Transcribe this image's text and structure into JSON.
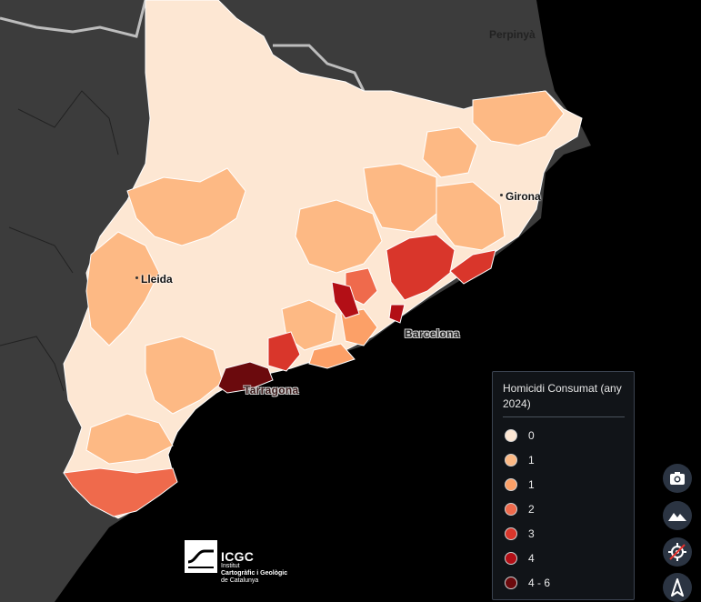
{
  "map": {
    "background_sea": "#000000",
    "background_land": "#3a3a3a",
    "labels": {
      "perpinya": "Perpinyà",
      "girona": "Girona",
      "lleida": "Lleida",
      "barcelona": "Barcelona",
      "tarragona": "Tarragona"
    }
  },
  "legend": {
    "title": "Homicidi Consumat (any 2024)",
    "items": [
      {
        "label": "0",
        "color": "#fde7d3"
      },
      {
        "label": "1",
        "color": "#fdb984"
      },
      {
        "label": "1",
        "color": "#fca067"
      },
      {
        "label": "2",
        "color": "#ef6a4c"
      },
      {
        "label": "3",
        "color": "#d9362b"
      },
      {
        "label": "4",
        "color": "#b30f16"
      },
      {
        "label": "4 - 6",
        "color": "#6b0a0d"
      }
    ]
  },
  "controls": [
    {
      "name": "screenshot-button",
      "icon": "camera-icon"
    },
    {
      "name": "terrain-button",
      "icon": "mountain-icon"
    },
    {
      "name": "locate-button",
      "icon": "location-disabled-icon"
    },
    {
      "name": "north-button",
      "icon": "compass-arrow-icon"
    }
  ],
  "logo": {
    "name": "ICGC",
    "line1": "Institut",
    "line2": "Cartogràfic i Geològic",
    "line3": "de Catalunya"
  }
}
